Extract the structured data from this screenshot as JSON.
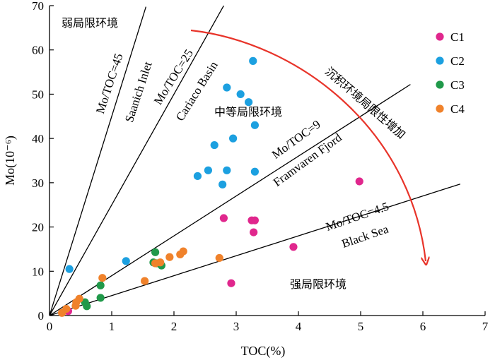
{
  "chart_data": {
    "type": "scatter",
    "xlabel": "TOC(%)",
    "ylabel": "Mo(10⁻⁶)",
    "xlim": [
      0,
      7
    ],
    "ylim": [
      0,
      70
    ],
    "xticks": [
      0,
      1,
      2,
      3,
      4,
      5,
      6,
      7
    ],
    "yticks": [
      0,
      10,
      20,
      30,
      40,
      50,
      60,
      70
    ],
    "grid": false,
    "legend_position": "top-right",
    "series": [
      {
        "name": "C1",
        "color": "#e0278d",
        "points": [
          [
            0.3,
            1.0
          ],
          [
            2.8,
            22.0
          ],
          [
            3.25,
            21.5
          ],
          [
            3.3,
            21.5
          ],
          [
            3.28,
            18.8
          ],
          [
            3.92,
            15.5
          ],
          [
            2.92,
            7.3
          ],
          [
            4.98,
            30.3
          ]
        ]
      },
      {
        "name": "C2",
        "color": "#1ca0e0",
        "points": [
          [
            3.27,
            57.5
          ],
          [
            2.85,
            51.5
          ],
          [
            3.07,
            50.0
          ],
          [
            3.2,
            48.2
          ],
          [
            3.3,
            43.0
          ],
          [
            2.95,
            40.0
          ],
          [
            2.65,
            38.5
          ],
          [
            2.55,
            32.8
          ],
          [
            2.38,
            31.5
          ],
          [
            2.85,
            32.8
          ],
          [
            3.3,
            32.5
          ],
          [
            2.78,
            29.6
          ],
          [
            1.23,
            12.3
          ],
          [
            0.32,
            10.5
          ]
        ]
      },
      {
        "name": "C3",
        "color": "#20994a",
        "points": [
          [
            1.7,
            14.3
          ],
          [
            1.67,
            12.0
          ],
          [
            1.72,
            11.8
          ],
          [
            1.8,
            11.3
          ],
          [
            0.82,
            6.8
          ],
          [
            0.82,
            4.0
          ],
          [
            0.57,
            3.0
          ],
          [
            0.6,
            2.1
          ]
        ]
      },
      {
        "name": "C4",
        "color": "#f0822b",
        "points": [
          [
            0.85,
            8.5
          ],
          [
            1.53,
            7.8
          ],
          [
            1.7,
            11.8
          ],
          [
            1.78,
            12.0
          ],
          [
            1.93,
            13.2
          ],
          [
            2.1,
            13.8
          ],
          [
            2.15,
            14.5
          ],
          [
            2.73,
            13.0
          ],
          [
            0.48,
            3.8
          ],
          [
            0.43,
            3.0
          ],
          [
            0.42,
            2.2
          ],
          [
            0.27,
            1.5
          ],
          [
            0.2,
            0.6
          ]
        ]
      }
    ],
    "reference_lines": [
      {
        "label": "Mo/TOC=45",
        "basin": "Saanich Inlet",
        "slope": 45
      },
      {
        "label": "Mo/TOC=25",
        "basin": "Cariaco Basin",
        "slope": 25
      },
      {
        "label": "Mo/TOC=9",
        "basin": "Framvaren Fjord",
        "slope": 9
      },
      {
        "label": "Mo/TOC=4.5",
        "basin": "Black Sea",
        "slope": 4.5
      }
    ],
    "region_labels": [
      "弱局限环境",
      "中等局限环境",
      "强局限环境"
    ],
    "arrow_label": "沉积环境局限性增加",
    "arrow_color": "#e8342a"
  }
}
